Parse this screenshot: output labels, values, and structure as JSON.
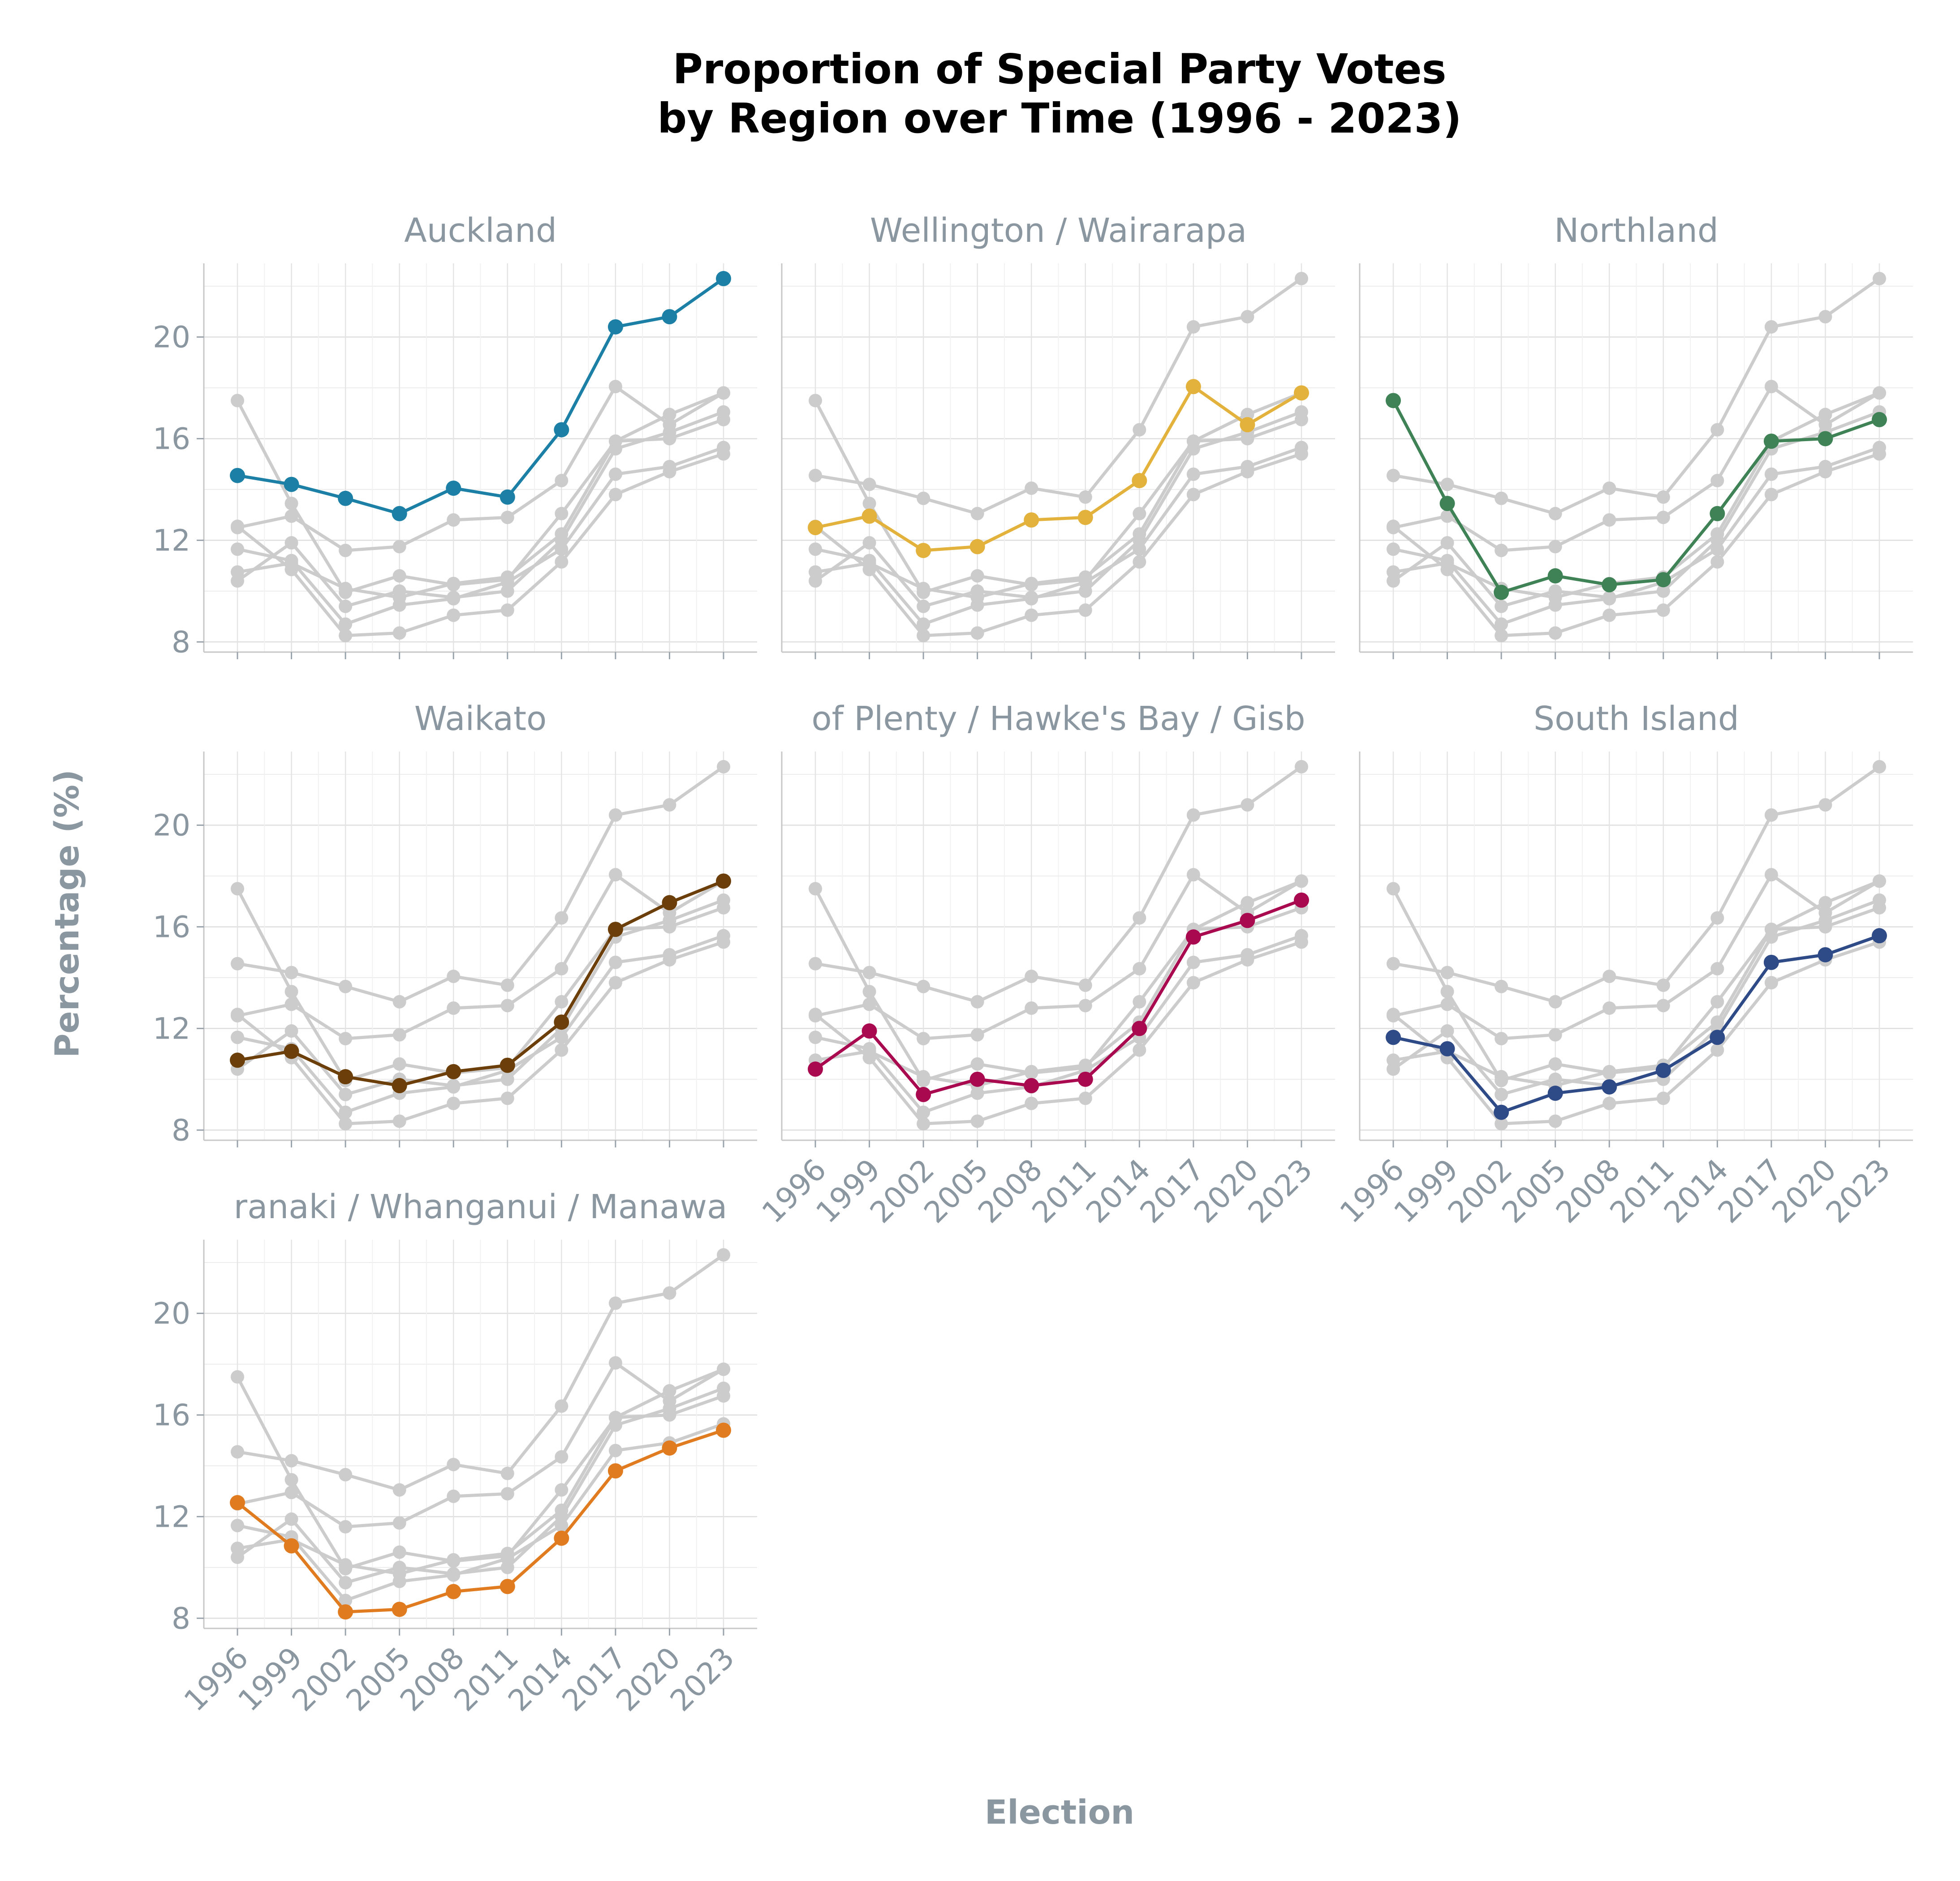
{
  "chart_data": {
    "type": "line",
    "title_lines": [
      "Proportion of Special Party Votes",
      "by Region over Time (1996 - 2023)"
    ],
    "xlabel": "Election",
    "ylabel": "Percentage (%)",
    "x": [
      1996,
      1999,
      2002,
      2005,
      2008,
      2011,
      2014,
      2017,
      2020,
      2023
    ],
    "x_tick_labels": [
      "1996",
      "1999",
      "2002",
      "2005",
      "2008",
      "2011",
      "2014",
      "2017",
      "2020",
      "2023"
    ],
    "ylim": [
      7.6,
      22.9
    ],
    "y_ticks": [
      8,
      12,
      16,
      20
    ],
    "y_tick_labels": [
      "8",
      "12",
      "16",
      "20"
    ],
    "grid": true,
    "background_color": "#cccccc",
    "series": [
      {
        "name": "Auckland",
        "color": "#1b7fa6",
        "values": [
          14.55,
          14.2,
          13.65,
          13.05,
          14.05,
          13.7,
          16.35,
          20.4,
          20.8,
          22.3
        ]
      },
      {
        "name": "Wellington / Wairarapa",
        "color": "#e3b23c",
        "values": [
          12.5,
          12.95,
          11.6,
          11.75,
          12.8,
          12.9,
          14.35,
          18.05,
          16.55,
          17.8
        ]
      },
      {
        "name": "Northland",
        "color": "#3e8256",
        "values": [
          17.5,
          13.45,
          9.95,
          10.6,
          10.25,
          10.45,
          13.05,
          15.9,
          16.0,
          16.75
        ]
      },
      {
        "name": "Waikato",
        "color": "#6b3e0a",
        "values": [
          10.75,
          11.1,
          10.1,
          9.75,
          10.3,
          10.55,
          12.25,
          15.9,
          16.95,
          17.8
        ]
      },
      {
        "name": "Bay of Plenty / Hawke's Bay / Gisborne",
        "color": "#a90a4f",
        "values": [
          10.4,
          11.9,
          9.4,
          10.0,
          9.75,
          10.0,
          12.0,
          15.6,
          16.25,
          17.05
        ]
      },
      {
        "name": "South Island",
        "color": "#2f4b87",
        "values": [
          11.65,
          11.2,
          8.7,
          9.45,
          9.7,
          10.35,
          11.65,
          14.6,
          14.9,
          15.65
        ]
      },
      {
        "name": "Taranaki / Whanganui / Manawatu",
        "color": "#e07b1f",
        "values": [
          12.55,
          10.85,
          8.25,
          8.35,
          9.05,
          9.25,
          11.15,
          13.8,
          14.7,
          15.4
        ]
      }
    ],
    "panel_titles": [
      "Auckland",
      "Wellington / Wairarapa",
      "Northland",
      "Waikato",
      "of Plenty / Hawke's Bay / Gisb",
      "South Island",
      "ranaki / Whanganui / Manawa"
    ]
  }
}
